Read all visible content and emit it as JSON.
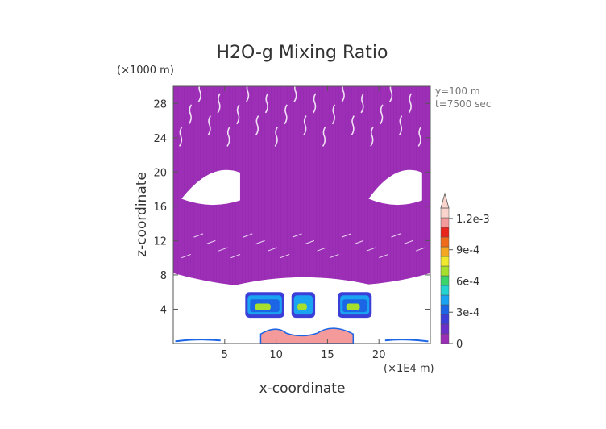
{
  "chart_data": {
    "type": "heatmap",
    "title": "H2O-g Mixing Ratio",
    "xlabel": "x-coordinate",
    "ylabel": "z-coordinate",
    "x_unit": "(×1E4 m)",
    "y_unit": "(×1000 m)",
    "xlim": [
      0,
      25
    ],
    "ylim": [
      0,
      30
    ],
    "x_ticks": [
      5,
      10,
      15,
      20
    ],
    "y_ticks": [
      4,
      8,
      12,
      16,
      20,
      24,
      28
    ],
    "annotations": [
      "y=100 m",
      "t=7500 sec"
    ],
    "colorbar": {
      "min": 0,
      "max": 0.0013,
      "tick_values": [
        0,
        0.0003,
        0.0006,
        0.0009,
        0.0012
      ],
      "tick_labels": [
        "0",
        "3e-4",
        "6e-4",
        "9e-4",
        "1.2e-3"
      ],
      "levels": [
        0,
        0.0001,
        0.0002,
        0.0003,
        0.0004,
        0.0005,
        0.0006,
        0.0007,
        0.0008,
        0.0009,
        0.001,
        0.0011,
        0.0012,
        0.0013
      ],
      "colors": [
        "#9a2fb6",
        "#6a2fc8",
        "#3b3fd8",
        "#1c66e6",
        "#1aa3f0",
        "#24d2d0",
        "#3ad46a",
        "#a6df2c",
        "#efe82c",
        "#f5a623",
        "#f06a1c",
        "#e8241c",
        "#f59a9a",
        "#fad4cc"
      ],
      "extend": "max"
    },
    "regions": [
      {
        "desc": "upper moist layer",
        "level": 5e-05,
        "x": [
          0,
          25
        ],
        "z": [
          7,
          30
        ]
      },
      {
        "desc": "central dry patch",
        "level": null,
        "x": [
          0.8,
          6.5
        ],
        "z": [
          16.5,
          20.5
        ]
      },
      {
        "desc": "central dry patch",
        "level": null,
        "x": [
          19,
          24.2
        ],
        "z": [
          16.5,
          20.5
        ]
      },
      {
        "desc": "cloud band left",
        "level": 0.00035,
        "x": [
          7,
          10.8
        ],
        "z": [
          3,
          6
        ]
      },
      {
        "desc": "cloud band center",
        "level": 0.0004,
        "x": [
          11.5,
          13.8
        ],
        "z": [
          3,
          6
        ]
      },
      {
        "desc": "cloud band right",
        "level": 0.00035,
        "x": [
          16,
          19.3
        ],
        "z": [
          3,
          6
        ]
      },
      {
        "desc": "surface layer",
        "level": 0.0012,
        "x": [
          8.5,
          17.5
        ],
        "z": [
          0,
          1.5
        ]
      }
    ]
  }
}
